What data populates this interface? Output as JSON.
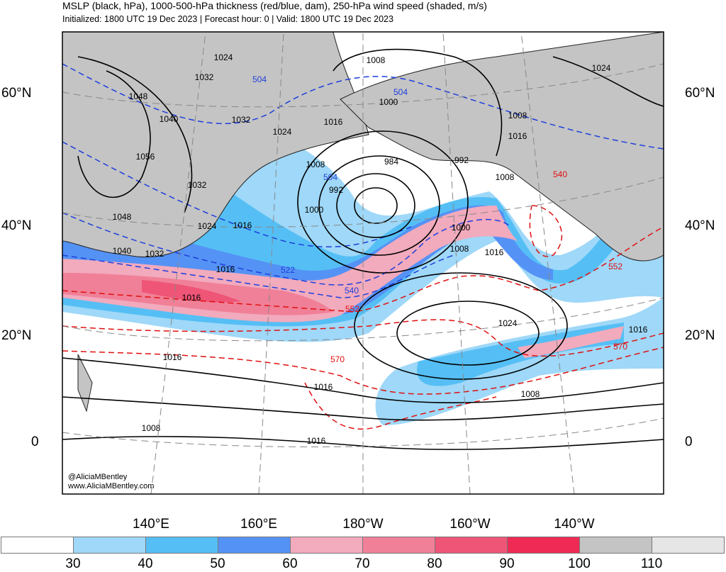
{
  "header": {
    "title": "MSLP (black, hPa), 1000-500-hPa thickness (red/blue, dam), 250-hPa wind speed (shaded, m/s)",
    "subtitle": "Initialized: 1800 UTC 19 Dec 2023 | Forecast hour: 0 | Valid: 1800 UTC 19 Dec 2023"
  },
  "map": {
    "lat_labels": [
      "60°N",
      "40°N",
      "20°N",
      "0"
    ],
    "lon_labels": [
      "140°E",
      "160°E",
      "180°W",
      "160°W",
      "140°W"
    ],
    "credit": [
      "@AliciaMBentley",
      "www.AliciaMBentley.com"
    ],
    "mslp_labels": [
      "1024",
      "1032",
      "1048",
      "1040",
      "1056",
      "1032",
      "1032",
      "1024",
      "1048",
      "1040",
      "1032",
      "1024",
      "1016",
      "1016",
      "1016",
      "1008",
      "1000",
      "992",
      "984",
      "1008",
      "1000",
      "992",
      "1008",
      "1016",
      "1008",
      "1024",
      "1000",
      "1008",
      "1016",
      "1024",
      "1016",
      "1016",
      "1016",
      "1016",
      "1008",
      "1008",
      "1016"
    ],
    "thickness_labels": [
      "504",
      "504",
      "504",
      "522",
      "540",
      "552",
      "570",
      "540",
      "552",
      "570"
    ],
    "colors": {
      "land": "#c4c4c4",
      "mslp": "#000000",
      "thickness_cold": "#1f3fdc",
      "thickness_warm": "#e01010"
    }
  },
  "colorbar": {
    "ticks": [
      "30",
      "40",
      "50",
      "60",
      "70",
      "80",
      "90",
      "100",
      "110"
    ],
    "colors": [
      "#ffffff",
      "#9fd8f8",
      "#55bff5",
      "#5592f5",
      "#f2aabd",
      "#f08098",
      "#ee5577",
      "#ee2a55",
      "#c4c4c4",
      "#e6e6e6"
    ]
  }
}
